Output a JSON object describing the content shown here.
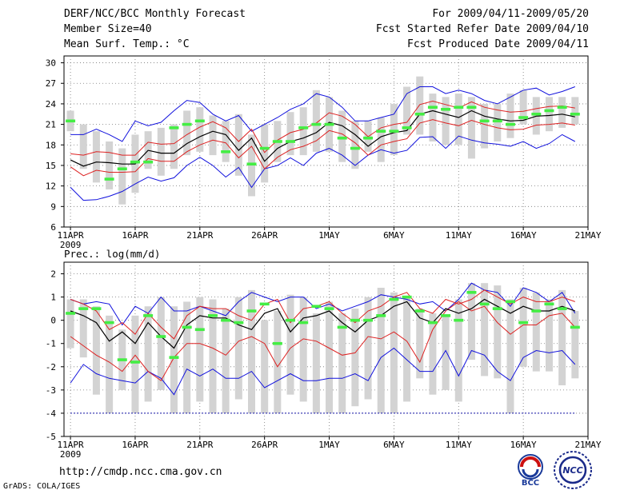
{
  "header": {
    "title": "DERF/NCC/BCC Monthly Forecast",
    "member_size": "Member Size=40",
    "variable_top": "Mean Surf. Temp.: °C",
    "period": "For 2009/04/11-2009/05/20",
    "fcst_started": "Fcst Started Refer Date 2009/04/10",
    "fcst_produced": "Fcst Produced Date 2009/04/11"
  },
  "footer": {
    "url": "http://cmdp.ncc.cma.gov.cn",
    "credit": "GrADS: COLA/IGES",
    "logo_left": "BCC",
    "logo_right": "NCC"
  },
  "colors": {
    "bar": "#d3d3d3",
    "observed": "#44ee44",
    "mean": "#000000",
    "spread": "#dd2222",
    "extreme": "#1111dd",
    "floor": "#1111aa",
    "grid": "#777777"
  },
  "chart_data": [
    {
      "type": "line",
      "title": "Mean Surf. Temp.: °C",
      "x": [
        1,
        2,
        3,
        4,
        5,
        6,
        7,
        8,
        9,
        10,
        11,
        12,
        13,
        14,
        15,
        16,
        17,
        18,
        19,
        20,
        21,
        22,
        23,
        24,
        25,
        26,
        27,
        28,
        29,
        30,
        31,
        32,
        33,
        34,
        35,
        36,
        37,
        38,
        39,
        40
      ],
      "xticks": [
        1,
        6,
        11,
        16,
        21,
        26,
        31,
        36,
        41
      ],
      "xticklabels": [
        "11APR",
        "16APR",
        "21APR",
        "26APR",
        "1MAY",
        "6MAY",
        "11MAY",
        "16MAY",
        "21MAY"
      ],
      "year_label": "2009",
      "xlim": [
        0.5,
        41
      ],
      "ylim": [
        6,
        31
      ],
      "yticks": [
        6,
        9,
        12,
        15,
        18,
        21,
        24,
        27,
        30
      ],
      "grid": true,
      "series": [
        {
          "name": "mean",
          "values": [
            15.8,
            14.9,
            15.5,
            15.4,
            15.2,
            15.2,
            17.2,
            16.8,
            16.8,
            18.2,
            19.2,
            20,
            19.5,
            17.2,
            19,
            15.6,
            17.5,
            18.5,
            19,
            19.8,
            21.3,
            20.8,
            19.5,
            17.8,
            19.2,
            19.8,
            20.1,
            22.5,
            23,
            22.5,
            22,
            23,
            22.2,
            21.8,
            21.5,
            21.6,
            22.2,
            22.3,
            22.5,
            22.1
          ]
        },
        {
          "name": "spread_upper",
          "values": [
            16.7,
            16.5,
            17,
            16.9,
            16.5,
            16.5,
            18.4,
            18.1,
            18.2,
            19.5,
            20.6,
            21.4,
            20.5,
            18.5,
            20.3,
            16.9,
            18.7,
            19.8,
            20.3,
            21.2,
            22.7,
            22.2,
            21,
            19.2,
            20.5,
            21,
            21.3,
            23.9,
            24.4,
            23.9,
            23.4,
            24.3,
            23.5,
            23.1,
            22.8,
            22.9,
            23.3,
            23.6,
            23.7,
            23.4
          ]
        },
        {
          "name": "spread_lower",
          "values": [
            14.8,
            13.5,
            14.3,
            14,
            14,
            14.1,
            16,
            15.6,
            15.6,
            17,
            18,
            18.7,
            18.3,
            16.1,
            17.8,
            14.5,
            16.2,
            17.3,
            17.8,
            18.6,
            20.1,
            19.6,
            18.3,
            16.5,
            18,
            18.5,
            18.9,
            21.2,
            21.7,
            21.2,
            20.8,
            21.6,
            21,
            20.5,
            20.2,
            20.3,
            20.9,
            21,
            21.2,
            20.9
          ]
        },
        {
          "name": "max",
          "values": [
            19.5,
            19.5,
            20.3,
            19.5,
            18.5,
            21.5,
            20.8,
            21.3,
            23,
            24.5,
            24.2,
            22.5,
            21.5,
            22.3,
            20,
            21,
            22,
            23.2,
            24,
            25.5,
            25,
            23.5,
            21.5,
            21.5,
            22,
            22.5,
            25.5,
            26.5,
            26.5,
            25.5,
            26,
            25.5,
            24.5,
            24,
            25,
            26,
            26.3,
            25.3,
            25.8,
            26.5
          ]
        },
        {
          "name": "min",
          "values": [
            11.8,
            9.9,
            10,
            10.5,
            11.2,
            12.3,
            13.3,
            12.7,
            13.2,
            15,
            16.2,
            15,
            13.3,
            14.7,
            11.8,
            14.5,
            15,
            16.1,
            15,
            16.8,
            17.5,
            16.5,
            15,
            16.5,
            17.3,
            16.8,
            17.2,
            19.1,
            19.2,
            17.5,
            19.3,
            18.7,
            18.3,
            18.1,
            17.8,
            18.5,
            17.5,
            18.2,
            19.5,
            18.5
          ]
        },
        {
          "name": "box_top",
          "values": [
            23,
            21,
            20,
            18.5,
            17.5,
            19.5,
            20,
            20.5,
            21,
            23,
            23.5,
            22.3,
            21.5,
            22.5,
            19.5,
            21,
            21.5,
            22.8,
            23.5,
            26,
            25,
            23,
            21.5,
            21.5,
            22,
            24,
            26.5,
            28,
            25.5,
            25,
            25.5,
            25,
            24,
            24,
            25.5,
            26,
            25,
            25,
            25,
            25
          ]
        },
        {
          "name": "box_bottom",
          "values": [
            20,
            14.5,
            12.5,
            11.5,
            9.3,
            11,
            14.5,
            13.5,
            14.5,
            16.5,
            17,
            16.5,
            15.5,
            13.5,
            10.5,
            12.5,
            15.5,
            16.5,
            16.5,
            17,
            17,
            15.5,
            14.5,
            17,
            15.5,
            16.5,
            19.5,
            19.5,
            18.5,
            18,
            18,
            16,
            17.5,
            18.5,
            19,
            21,
            19.5,
            20,
            20.5,
            21
          ]
        },
        {
          "name": "observed",
          "values": [
            21.5,
            null,
            null,
            13,
            14.5,
            15.5,
            15.5,
            null,
            20.5,
            21,
            21.5,
            null,
            17,
            null,
            15.2,
            17.5,
            18.5,
            18.5,
            20.5,
            21,
            21,
            19,
            17.5,
            19,
            20,
            20,
            20.5,
            22.5,
            23.5,
            23.2,
            23.5,
            23.5,
            21.5,
            21.5,
            21,
            22,
            22.5,
            23,
            23.5,
            22.5
          ]
        }
      ]
    },
    {
      "type": "line",
      "title": "Prec.: log(mm/d)",
      "x": [
        1,
        2,
        3,
        4,
        5,
        6,
        7,
        8,
        9,
        10,
        11,
        12,
        13,
        14,
        15,
        16,
        17,
        18,
        19,
        20,
        21,
        22,
        23,
        24,
        25,
        26,
        27,
        28,
        29,
        30,
        31,
        32,
        33,
        34,
        35,
        36,
        37,
        38,
        39,
        40
      ],
      "xticks": [
        1,
        6,
        11,
        16,
        21,
        26,
        31,
        36,
        41
      ],
      "xticklabels": [
        "11APR",
        "16APR",
        "21APR",
        "26APR",
        "1MAY",
        "6MAY",
        "11MAY",
        "16MAY",
        "21MAY"
      ],
      "year_label": "2009",
      "xlim": [
        0.5,
        41
      ],
      "ylim": [
        -5,
        2.5
      ],
      "yticks": [
        -5,
        -4,
        -3,
        -2,
        -1,
        0,
        1,
        2
      ],
      "floor_value": -4,
      "grid": true,
      "series": [
        {
          "name": "mean",
          "values": [
            0.4,
            0.2,
            -0.1,
            -0.9,
            -0.5,
            -1,
            -0.1,
            -0.7,
            -1.2,
            -0.2,
            0.2,
            0.1,
            0.1,
            -0.2,
            -0.4,
            0.3,
            0.5,
            -0.5,
            0.1,
            0.2,
            0.4,
            -0.1,
            -0.5,
            0,
            0.2,
            0.6,
            0.8,
            0.1,
            -0.1,
            0.5,
            0.3,
            0.5,
            0.9,
            0.6,
            0.3,
            0.6,
            0.4,
            0.4,
            0.6,
            0.4
          ]
        },
        {
          "name": "spread_upper",
          "values": [
            0.9,
            0.7,
            0.4,
            -0.4,
            -0.1,
            -0.6,
            0.3,
            -0.3,
            -0.8,
            0.2,
            0.6,
            0.5,
            0.5,
            0.2,
            0,
            0.7,
            0.9,
            -0.1,
            0.5,
            0.6,
            0.8,
            0.3,
            -0.1,
            0.4,
            0.6,
            1,
            1.2,
            0.5,
            0.3,
            0.9,
            0.7,
            0.9,
            1.3,
            1,
            0.7,
            1,
            0.8,
            0.8,
            1,
            0.8
          ]
        },
        {
          "name": "spread_lower",
          "values": [
            -0.7,
            -1.1,
            -1.5,
            -1.8,
            -2.2,
            -1.5,
            -2.2,
            -2.6,
            -1.6,
            -1,
            -1,
            -1.2,
            -1.5,
            -0.9,
            -0.7,
            -1,
            -2,
            -1.2,
            -0.8,
            -0.9,
            -1.2,
            -1.5,
            -1.4,
            -0.7,
            -0.8,
            -0.5,
            -0.9,
            -1.8,
            -0.4,
            0.4,
            0.8,
            0.4,
            0.6,
            -0.1,
            -0.6,
            -0.2,
            -0.2,
            0.2,
            0.3,
            -0.3
          ]
        },
        {
          "name": "max",
          "values": [
            0.9,
            0.7,
            0.8,
            0.7,
            -0.2,
            0.6,
            0.3,
            1,
            0.4,
            0.4,
            0.6,
            0.4,
            0.2,
            0.8,
            1.2,
            1,
            0.8,
            1,
            1,
            0.5,
            0.7,
            0.4,
            0.6,
            0.8,
            1.1,
            1,
            0.9,
            0.7,
            0.8,
            0.4,
            0.9,
            1.6,
            1.3,
            1.2,
            0.6,
            1.4,
            1.2,
            0.8,
            1.2,
            0.3
          ]
        },
        {
          "name": "min",
          "values": [
            -2.7,
            -1.9,
            -2.3,
            -2.5,
            -2.6,
            -2.7,
            -2.2,
            -2.5,
            -3.2,
            -2.1,
            -2.4,
            -2.1,
            -2.5,
            -2.5,
            -2.2,
            -2.9,
            -2.6,
            -2.3,
            -2.6,
            -2.6,
            -2.5,
            -2.5,
            -2.3,
            -2.6,
            -1.6,
            -1.2,
            -1.7,
            -2.2,
            -2.2,
            -1.3,
            -2.4,
            -1.3,
            -1.5,
            -2.2,
            -2.6,
            -1.6,
            -1.3,
            -1.4,
            -1.3,
            -1.9
          ]
        },
        {
          "name": "box_top",
          "values": [
            0.9,
            0.9,
            0.6,
            0.2,
            -0.4,
            0.2,
            0.6,
            1,
            0.6,
            0.8,
            1,
            0.9,
            0.5,
            1,
            1.3,
            0,
            0.4,
            1.1,
            1,
            0.3,
            0.8,
            0.3,
            0.5,
            1,
            1.4,
            1.2,
            1,
            0.5,
            0.3,
            0.2,
            0.9,
            1.6,
            1.6,
            1.5,
            0.9,
            1.4,
            1.2,
            0.9,
            1.3,
            0.4
          ]
        },
        {
          "name": "box_bottom",
          "values": [
            -1.2,
            -1.6,
            -3.2,
            -4,
            -3,
            -4,
            -3.5,
            -3,
            -4,
            -4,
            -3.5,
            -4,
            -4,
            -3.4,
            -4,
            -4,
            -4,
            -3.2,
            -3.5,
            -4,
            -4,
            -4,
            -3.7,
            -3.4,
            -4,
            -4,
            -3.5,
            -2.5,
            -3.2,
            -3,
            -3.5,
            -1.7,
            -2.4,
            -2.5,
            -4,
            -2,
            -2.2,
            -2.2,
            -2.8,
            -2.5
          ]
        },
        {
          "name": "observed",
          "values": [
            0.3,
            0.5,
            0.5,
            -0.1,
            -1.7,
            -1.8,
            0.2,
            -0.7,
            -1.6,
            -0.3,
            -0.4,
            0.2,
            0,
            -0.1,
            0.4,
            0.7,
            -1,
            0,
            -0.1,
            0.6,
            0.5,
            -0.3,
            0,
            0,
            0.2,
            0.9,
            1,
            0.4,
            -0.1,
            0.2,
            0,
            1.2,
            0.7,
            0.5,
            0.8,
            -0.1,
            0.4,
            0.7,
            0.5,
            -0.3
          ]
        }
      ]
    }
  ]
}
